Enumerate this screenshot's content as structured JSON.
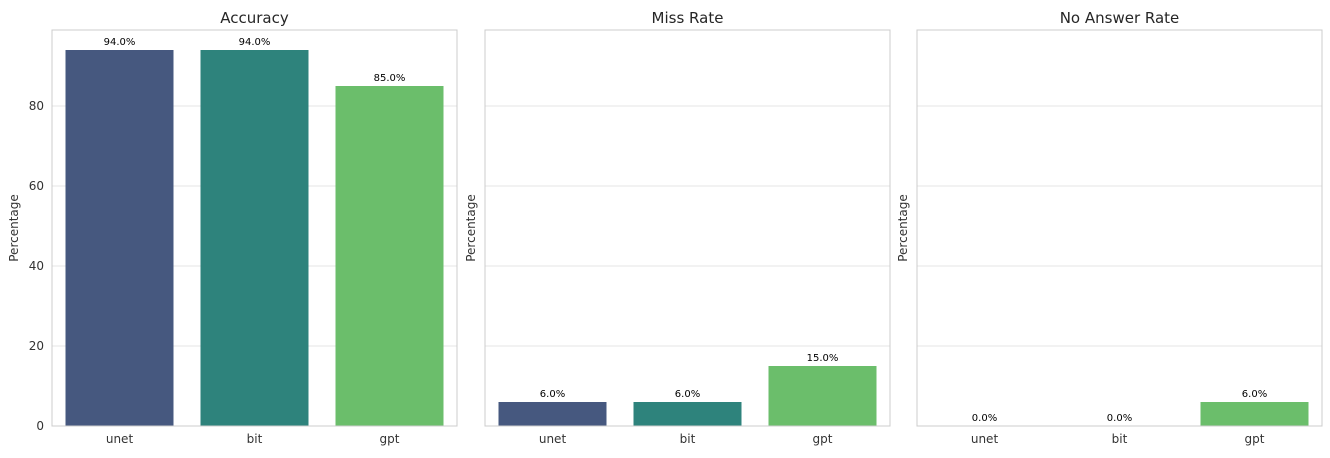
{
  "chart_data": [
    {
      "type": "bar",
      "title": "Accuracy",
      "xlabel": "",
      "ylabel": "Percentage",
      "categories": [
        "unet",
        "bit",
        "gpt"
      ],
      "values": [
        94.0,
        94.0,
        85.0
      ],
      "value_labels": [
        "94.0%",
        "94.0%",
        "85.0%"
      ],
      "colors": [
        "#46587f",
        "#2e837c",
        "#6bbe6b"
      ],
      "ylim": [
        0,
        99
      ],
      "yticks": [
        0,
        20,
        40,
        60,
        80
      ],
      "ytick_labels": [
        "0",
        "20",
        "40",
        "60",
        "80"
      ],
      "grid": true
    },
    {
      "type": "bar",
      "title": "Miss Rate",
      "xlabel": "",
      "ylabel": "Percentage",
      "categories": [
        "unet",
        "bit",
        "gpt"
      ],
      "values": [
        6.0,
        6.0,
        15.0
      ],
      "value_labels": [
        "6.0%",
        "6.0%",
        "15.0%"
      ],
      "colors": [
        "#46587f",
        "#2e837c",
        "#6bbe6b"
      ],
      "ylim": [
        0,
        99
      ],
      "yticks": [
        0,
        20,
        40,
        60,
        80
      ],
      "ytick_labels": [],
      "grid": true
    },
    {
      "type": "bar",
      "title": "No Answer Rate",
      "xlabel": "",
      "ylabel": "Percentage",
      "categories": [
        "unet",
        "bit",
        "gpt"
      ],
      "values": [
        0.0,
        0.0,
        6.0
      ],
      "value_labels": [
        "0.0%",
        "0.0%",
        "6.0%"
      ],
      "colors": [
        "#46587f",
        "#2e837c",
        "#6bbe6b"
      ],
      "ylim": [
        0,
        99
      ],
      "yticks": [
        0,
        20,
        40,
        60,
        80
      ],
      "ytick_labels": [],
      "grid": true
    }
  ]
}
